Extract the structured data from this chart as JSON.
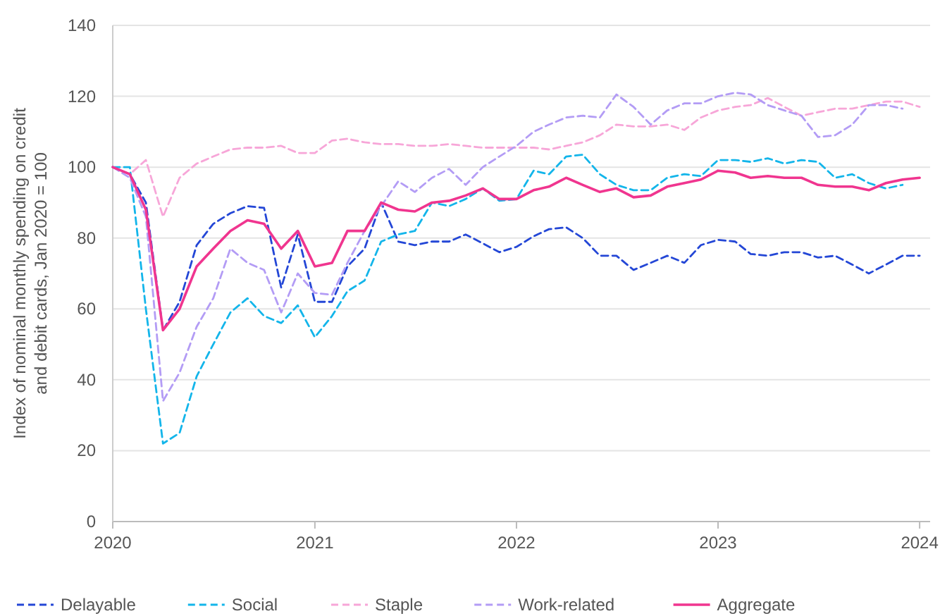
{
  "chart_data": {
    "type": "line",
    "ylabel": "Index of nominal monthly spending on credit and debit cards, Jan 2020 = 100",
    "x": [
      "2020-01",
      "2020-02",
      "2020-03",
      "2020-04",
      "2020-05",
      "2020-06",
      "2020-07",
      "2020-08",
      "2020-09",
      "2020-10",
      "2020-11",
      "2020-12",
      "2021-01",
      "2021-02",
      "2021-03",
      "2021-04",
      "2021-05",
      "2021-06",
      "2021-07",
      "2021-08",
      "2021-09",
      "2021-10",
      "2021-11",
      "2021-12",
      "2022-01",
      "2022-02",
      "2022-03",
      "2022-04",
      "2022-05",
      "2022-06",
      "2022-07",
      "2022-08",
      "2022-09",
      "2022-10",
      "2022-11",
      "2022-12",
      "2023-01",
      "2023-02",
      "2023-03",
      "2023-04",
      "2023-05",
      "2023-06",
      "2023-07",
      "2023-08",
      "2023-09",
      "2023-10",
      "2023-11",
      "2023-12",
      "2024-01"
    ],
    "xlim": [
      "2020-01",
      "2024-01-20"
    ],
    "xticks": [
      {
        "value": "2020-01",
        "label": "2020"
      },
      {
        "value": "2021-01",
        "label": "2021"
      },
      {
        "value": "2022-01",
        "label": "2022"
      },
      {
        "value": "2023-01",
        "label": "2023"
      },
      {
        "value": "2024-01",
        "label": "2024"
      }
    ],
    "ylim": [
      0,
      140
    ],
    "yticks": [
      0,
      20,
      40,
      60,
      80,
      100,
      120,
      140
    ],
    "grid": "y",
    "legend": "bottom",
    "series": [
      {
        "name": "Delayable",
        "color": "#2447d6",
        "line_style": "dashed",
        "values": [
          100,
          98,
          90,
          54,
          62,
          78,
          84,
          87,
          89,
          88.5,
          66,
          81,
          62,
          62,
          72,
          77,
          90,
          79,
          78,
          79,
          79,
          81,
          78.5,
          76,
          77.5,
          80.5,
          82.5,
          83,
          80,
          75,
          75,
          71,
          73,
          75,
          73,
          78,
          79.5,
          79,
          75.5,
          75,
          76,
          76,
          74.5,
          75,
          72.5,
          70,
          72.5,
          75,
          75
        ]
      },
      {
        "name": "Social",
        "color": "#13b5ea",
        "line_style": "dashed",
        "values": [
          100,
          100,
          60,
          22,
          25,
          41,
          50,
          59,
          63,
          58,
          56,
          61,
          52,
          58,
          65,
          68,
          79,
          81,
          82,
          90,
          89,
          91,
          94,
          90.5,
          91,
          99,
          98,
          103,
          103.5,
          98,
          95,
          93.5,
          93.5,
          97,
          98,
          97.5,
          102,
          102,
          101.5,
          102.5,
          101,
          102,
          101.5,
          97,
          98,
          95.5,
          94,
          95,
          null
        ]
      },
      {
        "name": "Staple",
        "color": "#f7a6d8",
        "line_style": "dashed",
        "values": [
          100,
          98,
          102,
          86,
          97,
          101,
          103,
          105,
          105.5,
          105.5,
          106,
          104,
          104,
          107.5,
          108,
          107,
          106.5,
          106.5,
          106,
          106,
          106.5,
          106,
          105.5,
          105.5,
          105.5,
          105.5,
          105,
          106,
          107,
          109,
          112,
          111.5,
          111.5,
          112,
          110.5,
          114,
          116,
          117,
          117.5,
          119.5,
          117,
          114.5,
          115.5,
          116.5,
          116.5,
          117.5,
          118.5,
          118.5,
          117
        ]
      },
      {
        "name": "Work-related",
        "color": "#b39cf5",
        "line_style": "dashed",
        "values": [
          100,
          97,
          86,
          34,
          42,
          55,
          63,
          77,
          73,
          71,
          59,
          70,
          64.5,
          64,
          73,
          82,
          89,
          96,
          93,
          97,
          99.5,
          95,
          100,
          103,
          106,
          110,
          112,
          114,
          114.5,
          114,
          120.5,
          117,
          112,
          116,
          118,
          118,
          120,
          121,
          120.5,
          117.5,
          116,
          114.5,
          108.5,
          109,
          112,
          117.5,
          117.5,
          116.5,
          null
        ]
      },
      {
        "name": "Aggregate",
        "color": "#f0358f",
        "line_style": "solid",
        "values": [
          100,
          98,
          88,
          54,
          60,
          72,
          77,
          82,
          85,
          84,
          77,
          82,
          72,
          73,
          82,
          82,
          90,
          88,
          87.5,
          90,
          90.5,
          92,
          94,
          91,
          91,
          93.5,
          94.5,
          97,
          95,
          93,
          94,
          91.5,
          92,
          94.5,
          95.5,
          96.5,
          99,
          98.5,
          97,
          97.5,
          97,
          97,
          95,
          94.5,
          94.5,
          93.5,
          95.5,
          96.5,
          97
        ]
      }
    ]
  }
}
